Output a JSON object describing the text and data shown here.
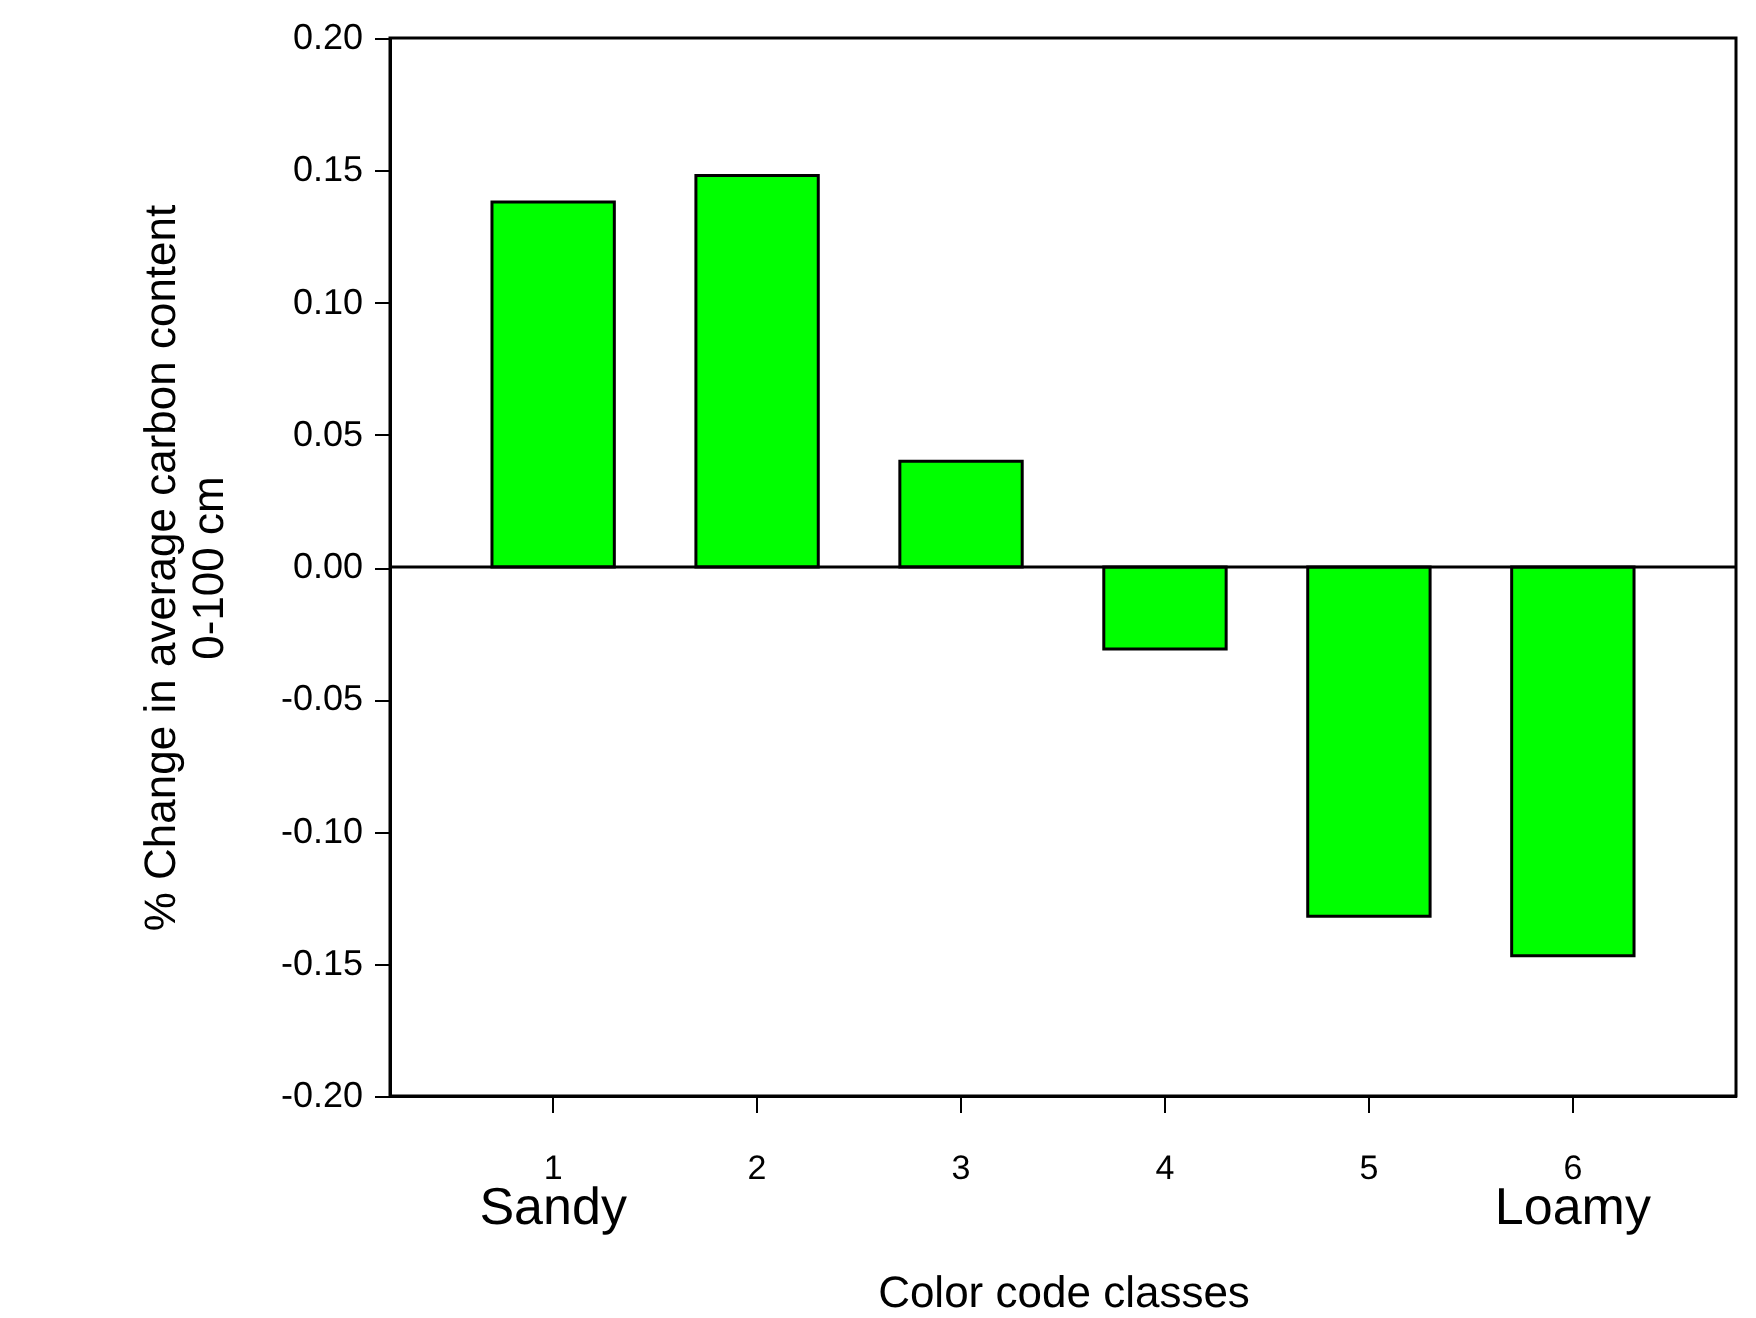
{
  "chart_data": {
    "type": "bar",
    "xlabel": "Color code classes",
    "ylabel": "% Change in average carbon content\n0-100 cm",
    "categories": [
      "1",
      "2",
      "3",
      "4",
      "5",
      "6"
    ],
    "values": [
      0.138,
      0.148,
      0.04,
      -0.031,
      -0.132,
      -0.147
    ],
    "color": "#00ff00",
    "ylim": [
      -0.2,
      0.2
    ],
    "yticks": [
      {
        "value": -0.2,
        "label": "-0.20"
      },
      {
        "value": -0.15,
        "label": "-0.15"
      },
      {
        "value": -0.1,
        "label": "-0.10"
      },
      {
        "value": -0.05,
        "label": "-0.05"
      },
      {
        "value": 0,
        "label": "0.00"
      },
      {
        "value": 0.05,
        "label": "0.05"
      },
      {
        "value": 0.1,
        "label": "0.10"
      },
      {
        "value": 0.15,
        "label": "0.15"
      },
      {
        "value": 0.2,
        "label": "0.20"
      }
    ],
    "ref_lines": [
      {
        "axis": "y",
        "value": 0,
        "color": "#000000"
      }
    ],
    "annotations": [
      "Sandy",
      "Loamy"
    ],
    "grid": false
  }
}
